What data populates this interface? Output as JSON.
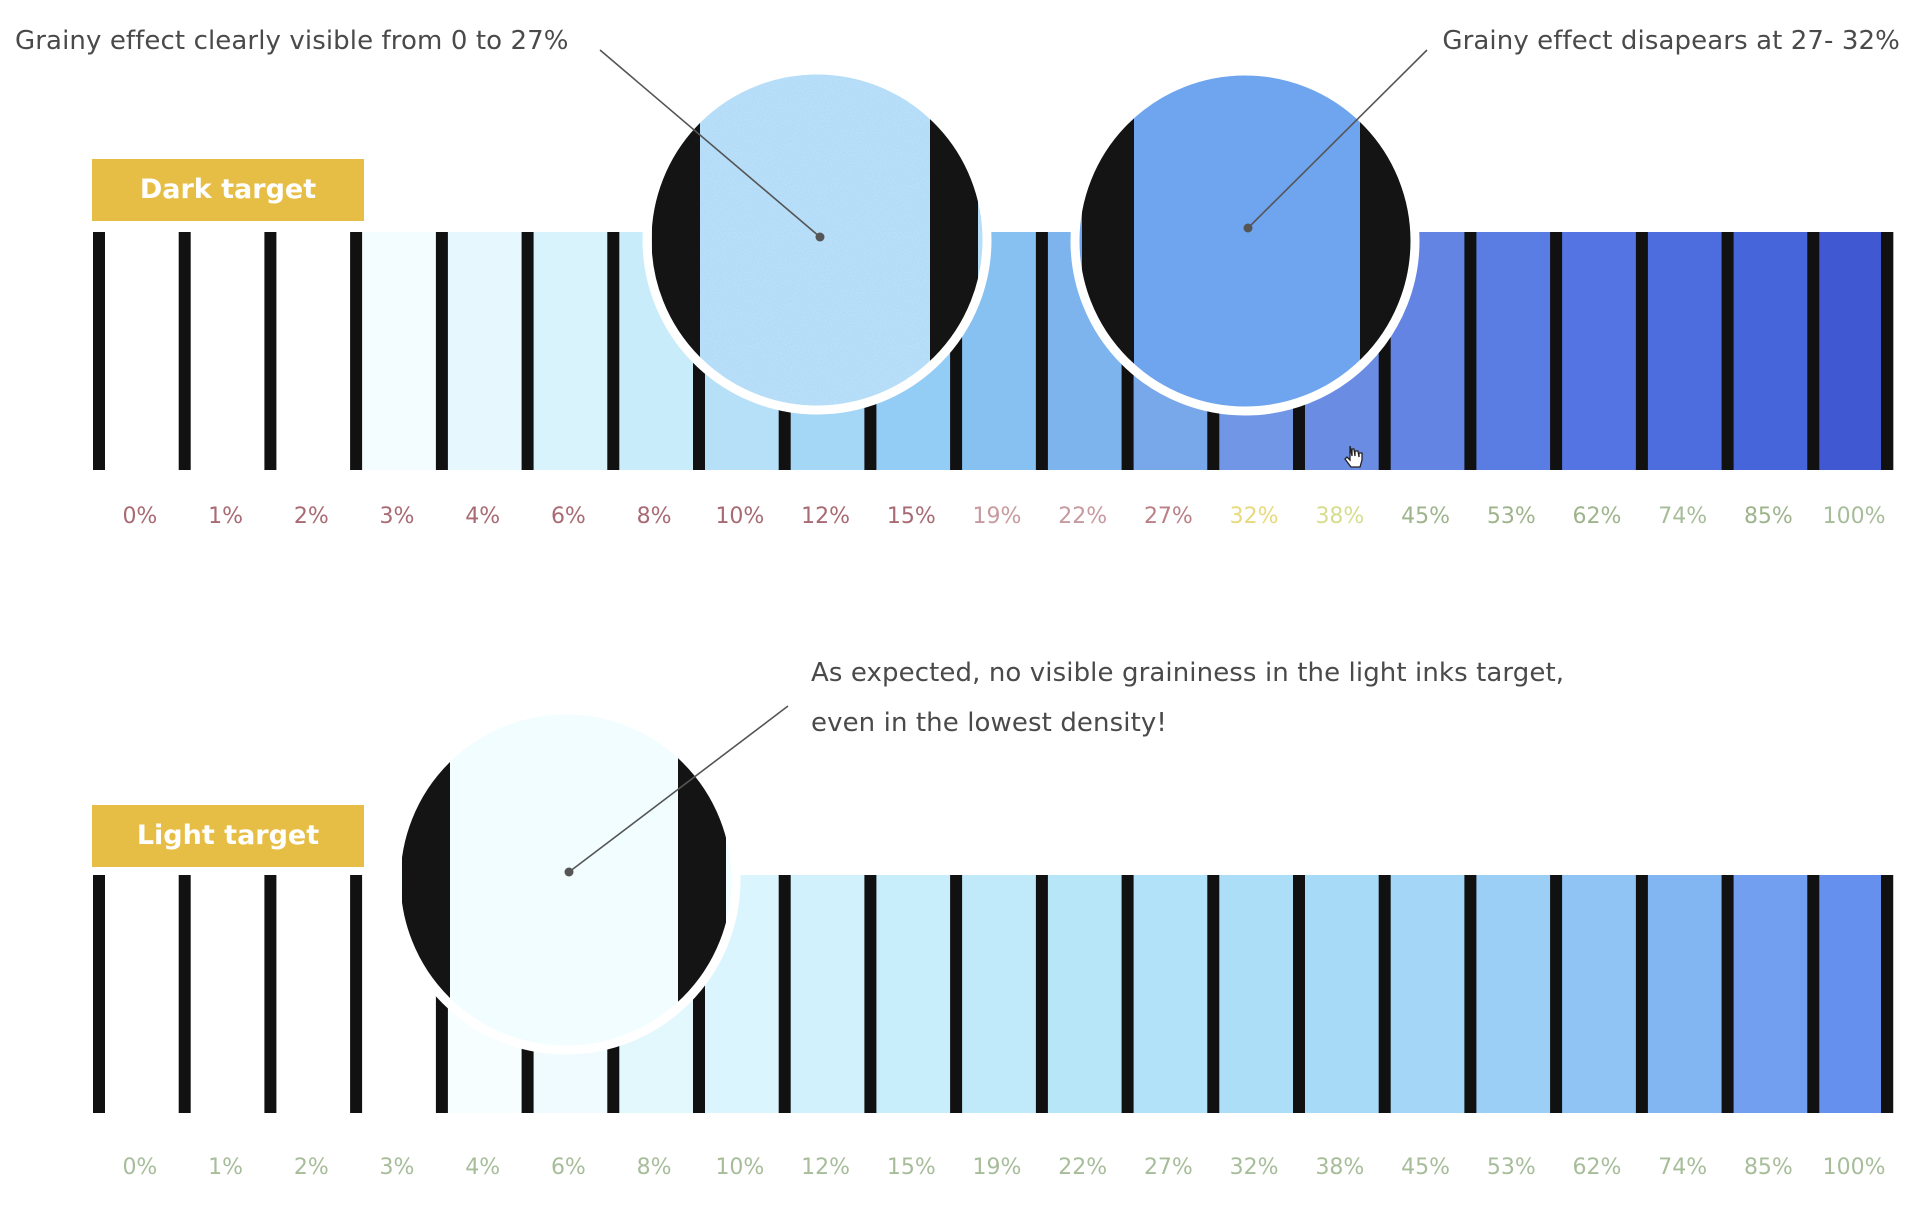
{
  "annotations": {
    "dark_grainy": "Grainy effect clearly visible from 0 to 27%",
    "dark_disappears": "Grainy effect disapears at 27- 32%",
    "light_line1": "As expected, no visible graininess in the light inks target,",
    "light_line2": "even in the lowest density!"
  },
  "targets": {
    "dark_label": "Dark target",
    "light_label": "Light target",
    "label_color": "#e7be45"
  },
  "percentages": [
    "0%",
    "1%",
    "2%",
    "3%",
    "4%",
    "6%",
    "8%",
    "10%",
    "12%",
    "15%",
    "19%",
    "22%",
    "27%",
    "32%",
    "38%",
    "45%",
    "53%",
    "62%",
    "74%",
    "85%",
    "100%"
  ],
  "dark_patch_colors": [
    "#ffffff",
    "#ffffff",
    "#ffffff",
    "#f3fcfe",
    "#e6f8fd",
    "#d9f3fc",
    "#c8ecfa",
    "#b5e0f8",
    "#a4d6f6",
    "#93ccf4",
    "#86c1f2",
    "#7db4ee",
    "#79a8ea",
    "#7196e5",
    "#6b8ce3",
    "#6384e3",
    "#5a7de4",
    "#5374e2",
    "#4d6ddf",
    "#4765da",
    "#4058d2"
  ],
  "light_patch_colors": [
    "#ffffff",
    "#ffffff",
    "#ffffff",
    "#ffffff",
    "#f7feff",
    "#effbfe",
    "#e3f8fd",
    "#daf5fd",
    "#d1f2fc",
    "#c8eefb",
    "#c0eafa",
    "#b8e6f9",
    "#b2e2f9",
    "#acdef8",
    "#a7daf7",
    "#a3d6f7",
    "#9ccff6",
    "#90c4f5",
    "#82b6f3",
    "#729ff0",
    "#6690ee"
  ],
  "dark_label_colors": [
    "#a86a73",
    "#a86a73",
    "#a86a73",
    "#a86a73",
    "#a86a73",
    "#a86a73",
    "#a86a73",
    "#a86a73",
    "#a86a73",
    "#a86a73",
    "#c79a9f",
    "#c79a9f",
    "#b98086",
    "#e8d97d",
    "#d7dd8f",
    "#9eb48c",
    "#9eb48c",
    "#9eb48c",
    "#a7bd9a",
    "#9eb48c",
    "#a7bd9a"
  ],
  "light_label_color": "#a7bd9a",
  "magnifiers": {
    "dark_grainy_fill": "#8ecff6",
    "dark_smooth_fill": "#6fa4ee",
    "light_fill": "#f1fdff"
  }
}
